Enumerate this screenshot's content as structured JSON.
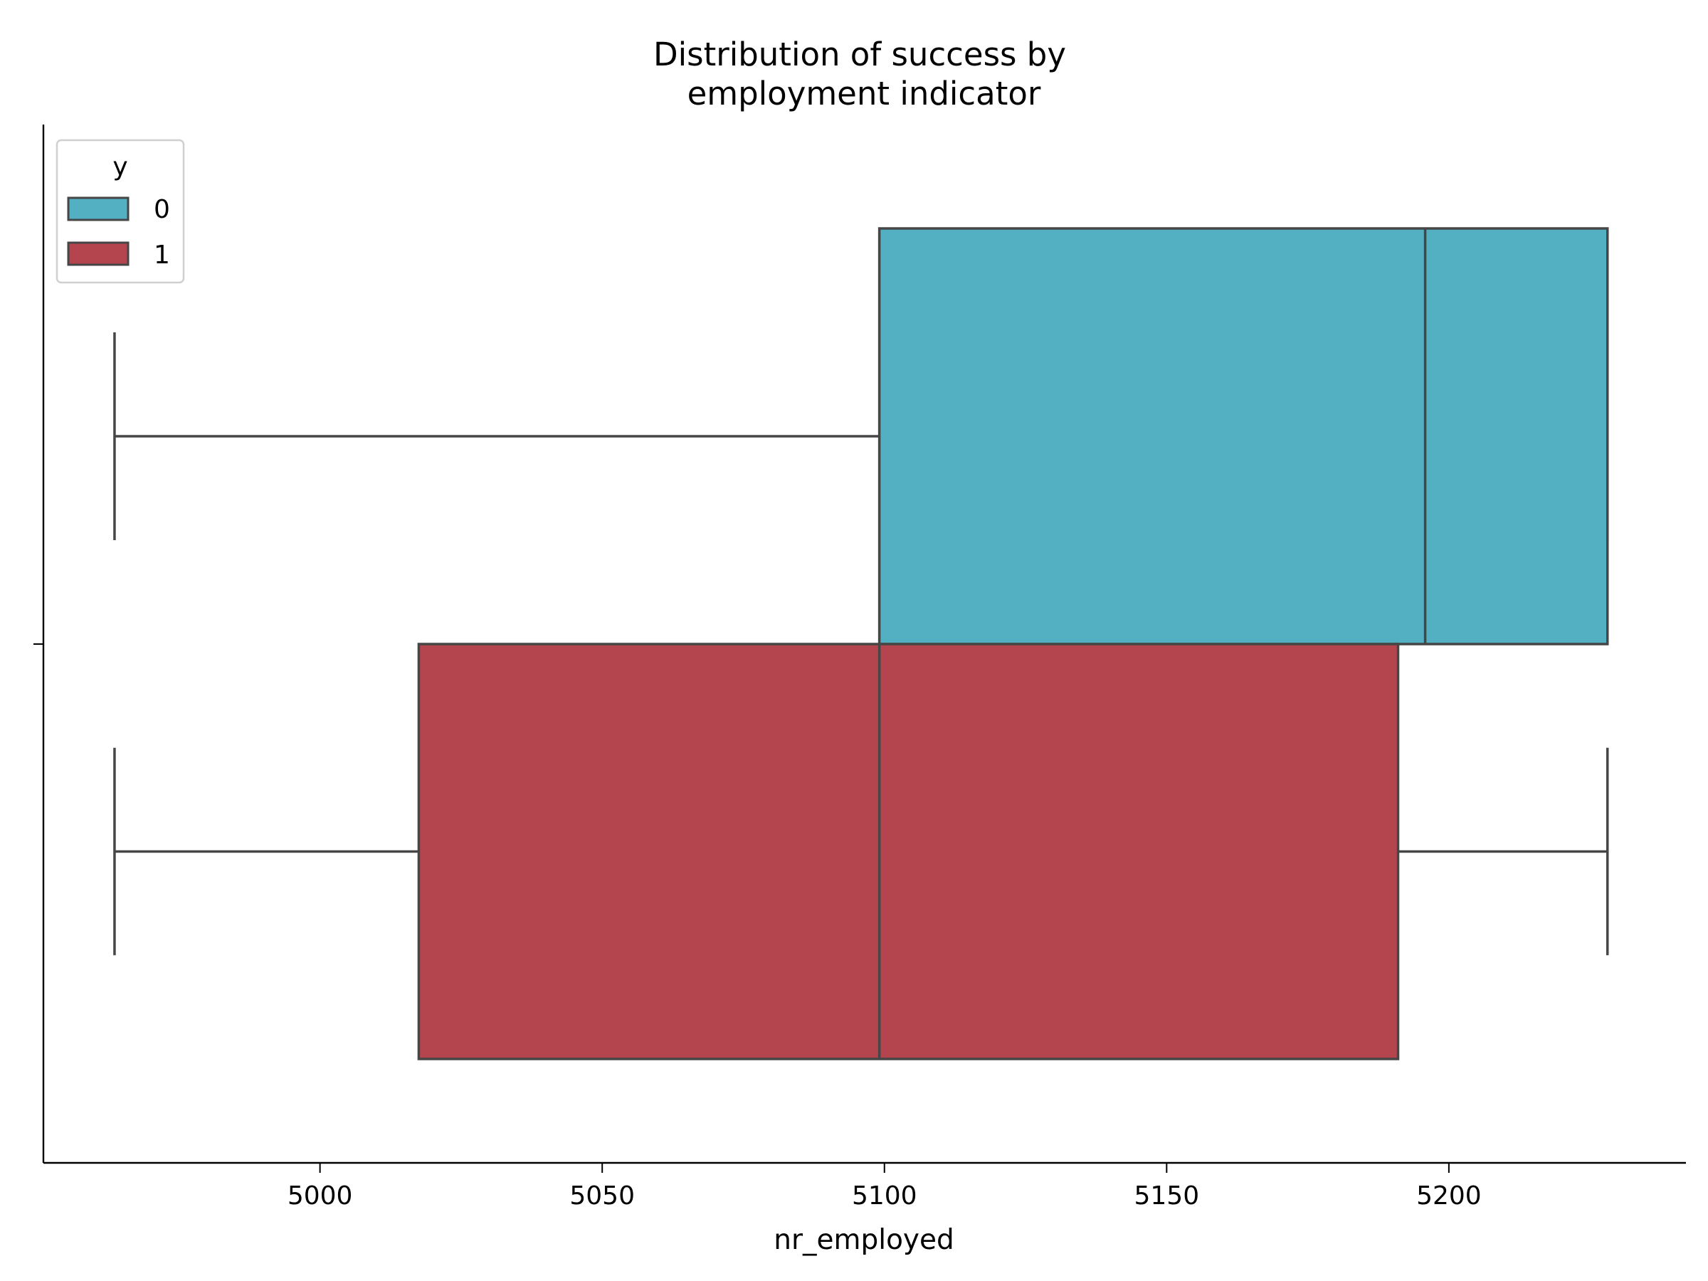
{
  "chart_data": {
    "type": "boxplot",
    "orientation": "horizontal",
    "title_lines": [
      "Distribution of success by",
      "employment indicator"
    ],
    "xlabel": "nr_employed",
    "ylabel": "",
    "xlim": [
      4951,
      5242
    ],
    "xticks": [
      5000,
      5050,
      5100,
      5150,
      5200
    ],
    "grid": false,
    "legend": {
      "title": "y",
      "placement": "upper-left",
      "entries": [
        {
          "label": "0",
          "color": "#53AFC2"
        },
        {
          "label": "1",
          "color": "#B4444D"
        }
      ]
    },
    "series": [
      {
        "name": "0",
        "color": "#53AFC2",
        "whisker_low": 4963.6,
        "q1": 5099.1,
        "median": 5195.8,
        "q3": 5228.1,
        "whisker_high": 5228.1
      },
      {
        "name": "1",
        "color": "#B4444D",
        "whisker_low": 4963.6,
        "q1": 5017.5,
        "median": 5099.1,
        "q3": 5191.0,
        "whisker_high": 5228.1
      }
    ]
  }
}
